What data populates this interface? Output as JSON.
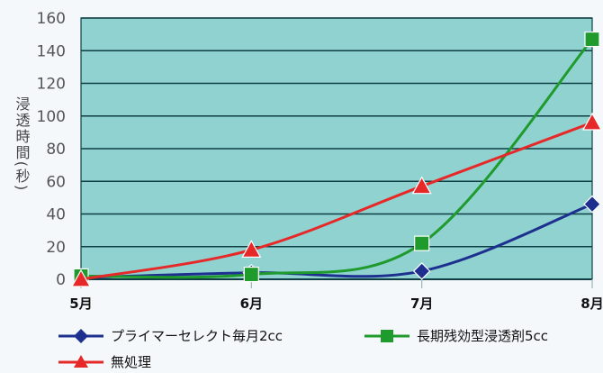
{
  "chart_data": {
    "type": "line",
    "title": "",
    "xlabel": "",
    "ylabel": "浸透時間(秒)",
    "categories": [
      "5月",
      "6月",
      "7月",
      "8月"
    ],
    "ylim": [
      0,
      160
    ],
    "yticks": [
      0,
      20,
      40,
      60,
      80,
      100,
      120,
      140,
      160
    ],
    "grid": true,
    "legend_position": "bottom",
    "colors": {
      "plot_bg": "#8fd2d0",
      "grid": "#0f3e45",
      "axis_text": "#555555"
    },
    "series": [
      {
        "name": "プライマーセレクト毎月2cc",
        "color": "#1d2f8f",
        "marker": "diamond",
        "values": [
          1,
          4,
          5,
          46
        ]
      },
      {
        "name": "長期残効型浸透剤5cc",
        "color": "#1f9a2d",
        "marker": "square",
        "values": [
          2,
          3,
          22,
          147
        ]
      },
      {
        "name": "無処理",
        "color": "#e62828",
        "marker": "triangle",
        "values": [
          0,
          18,
          57,
          96
        ]
      }
    ]
  }
}
